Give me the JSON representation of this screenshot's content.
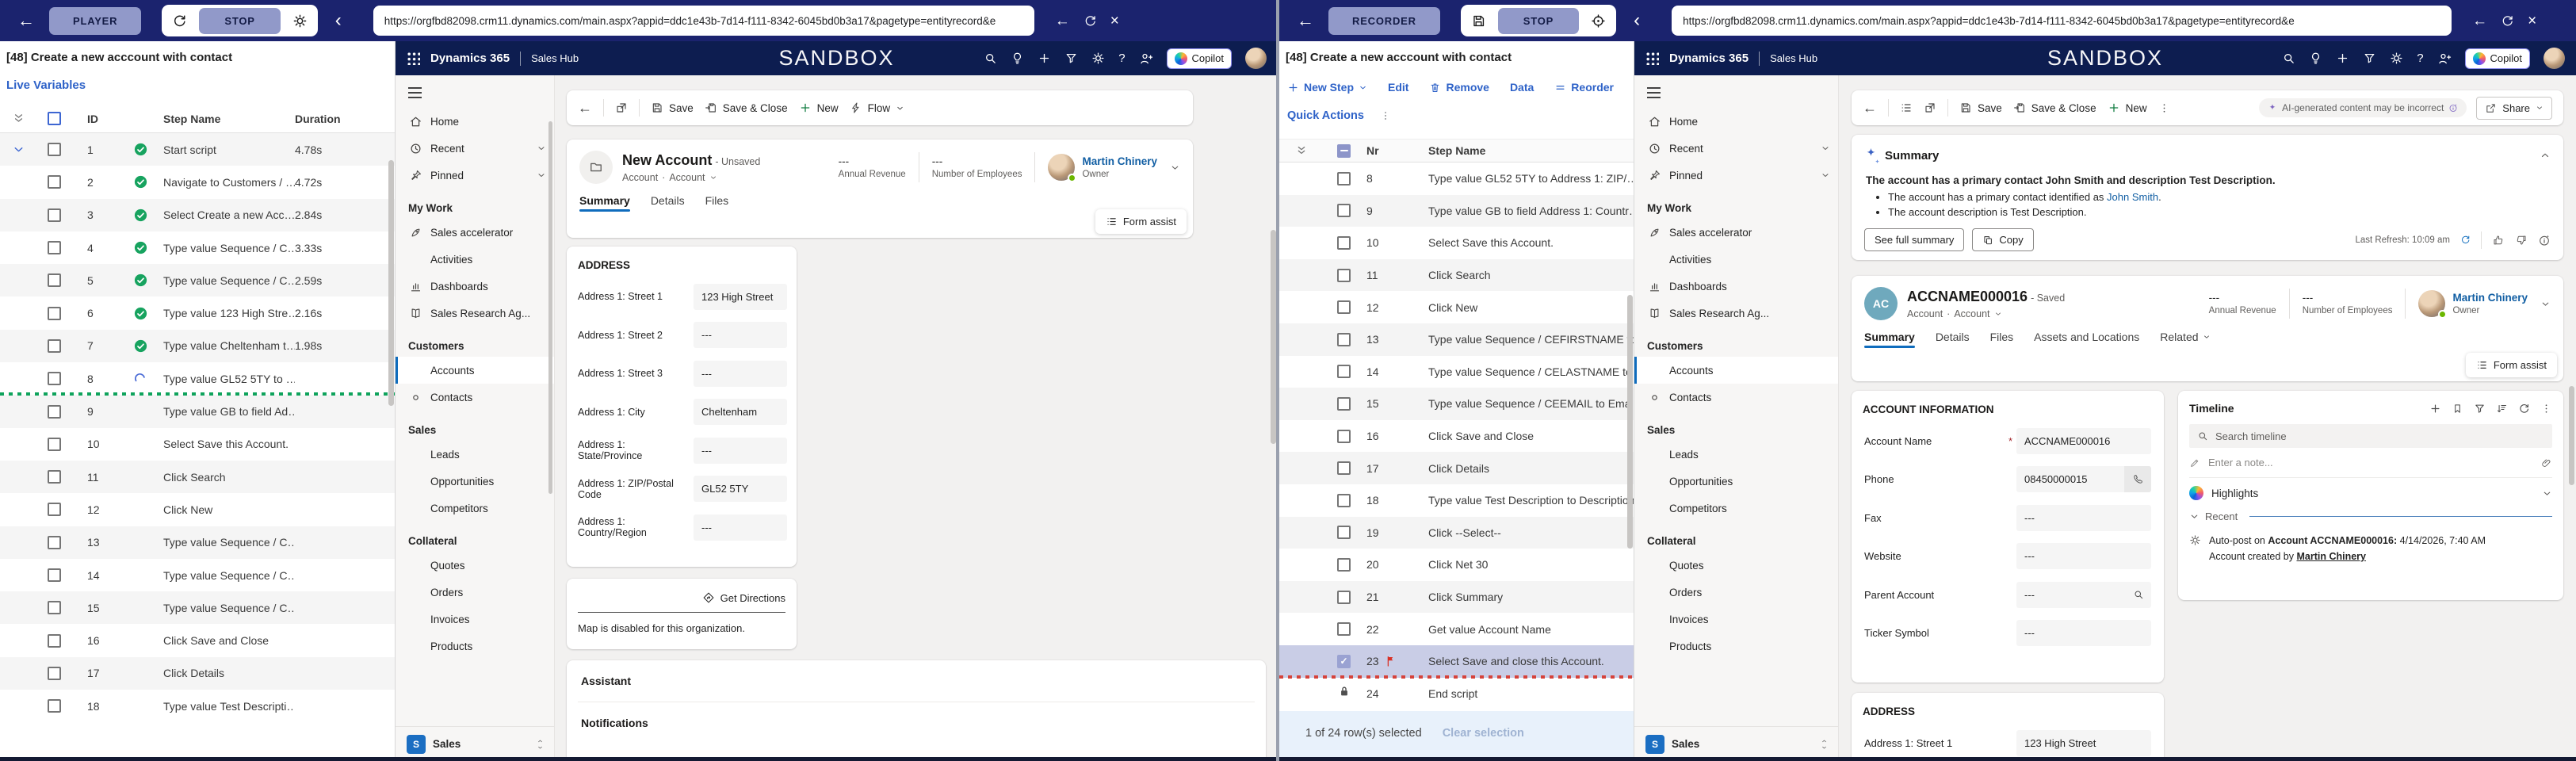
{
  "colors": {
    "toolbar_navy": "#1b236e",
    "button_lavender": "#9199c9",
    "dynamics_navy": "#0d1d50",
    "accent_blue": "#0f6cbd",
    "link_blue": "#2e62c8",
    "success_green": "#17a35f",
    "spinner_blue": "#4a6bd6",
    "selected_row": "#c9cde6",
    "flag_red": "#d93025",
    "footer_bar": "#e8f1fb"
  },
  "left": {
    "toolbar": {
      "mode": "PLAYER",
      "stop": "STOP",
      "url": "https://orgfbd82098.crm11.dynamics.com/main.aspx?appid=ddc1e43b-7d14-f111-8342-6045bd0b3a17&pagetype=entityrecord&e"
    },
    "player": {
      "title": "[48] Create a new acccount with contact",
      "live_variables": "Live Variables",
      "columns": {
        "id": "ID",
        "name": "Step Name",
        "duration": "Duration"
      },
      "rows": [
        {
          "id": "1",
          "name": "Start script",
          "duration": "4.78s",
          "done": true,
          "expander": true,
          "cb": true
        },
        {
          "id": "2",
          "name": "Navigate to Customers / …",
          "duration": "4.72s",
          "done": true,
          "cb": true
        },
        {
          "id": "3",
          "name": "Select Create a new Acc…",
          "duration": "2.84s",
          "done": true,
          "cb": true
        },
        {
          "id": "4",
          "name": "Type value Sequence / C…",
          "duration": "3.33s",
          "done": true,
          "cb": true
        },
        {
          "id": "5",
          "name": "Type value Sequence / C…",
          "duration": "2.59s",
          "done": true,
          "cb": true
        },
        {
          "id": "6",
          "name": "Type value 123 High Stre…",
          "duration": "2.16s",
          "done": true,
          "cb": true
        },
        {
          "id": "7",
          "name": "Type value Cheltenham t…",
          "duration": "1.98s",
          "done": true,
          "cb": true
        },
        {
          "id": "8",
          "name": "Type value GL52 5TY to …",
          "duration": "",
          "running": true,
          "cb": true,
          "divider": "green"
        },
        {
          "id": "9",
          "name": "Type value GB to field Ad…",
          "duration": "",
          "cb": true
        },
        {
          "id": "10",
          "name": "Select Save this Account.",
          "duration": "",
          "cb": true
        },
        {
          "id": "11",
          "name": "Click Search",
          "duration": "",
          "cb": true
        },
        {
          "id": "12",
          "name": "Click New",
          "duration": "",
          "cb": true
        },
        {
          "id": "13",
          "name": "Type value Sequence / C…",
          "duration": "",
          "cb": true
        },
        {
          "id": "14",
          "name": "Type value Sequence / C…",
          "duration": "",
          "cb": true
        },
        {
          "id": "15",
          "name": "Type value Sequence / C…",
          "duration": "",
          "cb": true
        },
        {
          "id": "16",
          "name": "Click Save and Close",
          "duration": "",
          "cb": true
        },
        {
          "id": "17",
          "name": "Click Details",
          "duration": "",
          "cb": true
        },
        {
          "id": "18",
          "name": "Type value Test Descripti…",
          "duration": "",
          "cb": true
        }
      ]
    },
    "d365": {
      "navbar": {
        "brand": "Dynamics 365",
        "app": "Sales Hub",
        "env": "SANDBOX",
        "copilot": "Copilot"
      },
      "sidebar": {
        "top": [
          {
            "icon": "home",
            "label": "Home"
          },
          {
            "icon": "clock",
            "label": "Recent",
            "chevron": true
          },
          {
            "icon": "pin",
            "label": "Pinned",
            "chevron": true
          }
        ],
        "groups": [
          {
            "label": "My Work",
            "items": [
              {
                "icon": "rocket",
                "label": "Sales accelerator"
              },
              {
                "label": "Activities"
              },
              {
                "icon": "chart",
                "label": "Dashboards"
              },
              {
                "icon": "book",
                "label": "Sales Research Ag..."
              }
            ]
          },
          {
            "label": "Customers",
            "items": [
              {
                "label": "Accounts",
                "selected": true
              },
              {
                "icon": "dot",
                "label": "Contacts"
              }
            ]
          },
          {
            "label": "Sales",
            "items": [
              {
                "label": "Leads"
              },
              {
                "label": "Opportunities"
              },
              {
                "label": "Competitors"
              }
            ]
          },
          {
            "label": "Collateral",
            "items": [
              {
                "label": "Quotes"
              },
              {
                "label": "Orders"
              },
              {
                "label": "Invoices"
              },
              {
                "label": "Products"
              }
            ]
          }
        ],
        "footer": {
          "badge": "S",
          "label": "Sales"
        }
      },
      "commands": {
        "save": "Save",
        "save_close": "Save & Close",
        "new_": "New",
        "flow": "Flow"
      },
      "record": {
        "title": "New Account",
        "status": "- Unsaved",
        "entity": "Account",
        "form": "Account",
        "revenue_value": "---",
        "revenue_label": "Annual Revenue",
        "employees_value": "---",
        "employees_label": "Number of Employees",
        "owner": "Martin Chinery",
        "owner_role": "Owner"
      },
      "tabs": [
        {
          "label": "Summary",
          "active": true
        },
        {
          "label": "Details"
        },
        {
          "label": "Files"
        }
      ],
      "form_assist": "Form assist",
      "address": {
        "title": "ADDRESS",
        "fields": [
          {
            "label": "Address 1: Street 1",
            "value": "123 High Street"
          },
          {
            "label": "Address 1: Street 2",
            "value": "---"
          },
          {
            "label": "Address 1: Street 3",
            "value": "---"
          },
          {
            "label": "Address 1: City",
            "value": "Cheltenham"
          },
          {
            "label": "Address 1: State/Province",
            "value": "---"
          },
          {
            "label": "Address 1: ZIP/Postal Code",
            "value": "GL52 5TY"
          },
          {
            "label": "Address 1: Country/Region",
            "value": "---"
          }
        ]
      },
      "map": {
        "action": "Get Directions",
        "note": "Map is disabled for this organization."
      },
      "assistant": "Assistant",
      "notifications": "Notifications"
    }
  },
  "right": {
    "toolbar": {
      "mode": "RECORDER",
      "stop": "STOP",
      "url": "https://orgfbd82098.crm11.dynamics.com/main.aspx?appid=ddc1e43b-7d14-f111-8342-6045bd0b3a17&pagetype=entityrecord&e"
    },
    "recorder": {
      "title": "[48] Create a new acccount with contact",
      "actions": {
        "new_step": "New Step",
        "edit": "Edit",
        "remove": "Remove",
        "data": "Data",
        "reorder": "Reorder"
      },
      "quick_actions": "Quick Actions",
      "columns": {
        "nr": "Nr",
        "name": "Step Name"
      },
      "rows": [
        {
          "nr": "8",
          "name": "Type value GL52 5TY to Address 1: ZIP/…",
          "cb": true
        },
        {
          "nr": "9",
          "name": "Type value GB to field Address 1: Countr…",
          "cb": true
        },
        {
          "nr": "10",
          "name": "Select Save this Account.",
          "cb": true
        },
        {
          "nr": "11",
          "name": "Click Search",
          "cb": true
        },
        {
          "nr": "12",
          "name": "Click New",
          "cb": true
        },
        {
          "nr": "13",
          "name": "Type value Sequence / CEFIRSTNAME to…",
          "cb": true
        },
        {
          "nr": "14",
          "name": "Type value Sequence / CELASTNAME to …",
          "cb": true
        },
        {
          "nr": "15",
          "name": "Type value Sequence / CEEMAIL to Email",
          "cb": true
        },
        {
          "nr": "16",
          "name": "Click Save and Close",
          "cb": true
        },
        {
          "nr": "17",
          "name": "Click Details",
          "cb": true
        },
        {
          "nr": "18",
          "name": "Type value Test Description to Description",
          "cb": true
        },
        {
          "nr": "19",
          "name": "Click --Select--",
          "cb": true
        },
        {
          "nr": "20",
          "name": "Click Net 30",
          "cb": true
        },
        {
          "nr": "21",
          "name": "Click Summary",
          "cb": true
        },
        {
          "nr": "22",
          "name": "Get value Account Name",
          "cb": true
        },
        {
          "nr": "23",
          "name": "Select Save and close this Account.",
          "cb": true,
          "cbstate": "checked",
          "state": "selected",
          "flag": true,
          "divider": "red"
        },
        {
          "nr": "24",
          "name": "End script",
          "lock": true
        }
      ],
      "footer": {
        "selected": "1 of 24 row(s) selected",
        "clear": "Clear selection"
      }
    },
    "d365": {
      "navbar": {
        "brand": "Dynamics 365",
        "app": "Sales Hub",
        "env": "SANDBOX",
        "copilot": "Copilot"
      },
      "sidebar": {
        "top": [
          {
            "icon": "home",
            "label": "Home"
          },
          {
            "icon": "clock",
            "label": "Recent",
            "chevron": true
          },
          {
            "icon": "pin",
            "label": "Pinned",
            "chevron": true
          }
        ],
        "groups": [
          {
            "label": "My Work",
            "items": [
              {
                "icon": "rocket",
                "label": "Sales accelerator"
              },
              {
                "label": "Activities"
              },
              {
                "icon": "chart",
                "label": "Dashboards"
              },
              {
                "icon": "book",
                "label": "Sales Research Ag..."
              }
            ]
          },
          {
            "label": "Customers",
            "items": [
              {
                "label": "Accounts",
                "selected": true
              },
              {
                "icon": "dot",
                "label": "Contacts"
              }
            ]
          },
          {
            "label": "Sales",
            "items": [
              {
                "label": "Leads"
              },
              {
                "label": "Opportunities"
              },
              {
                "label": "Competitors"
              }
            ]
          },
          {
            "label": "Collateral",
            "items": [
              {
                "label": "Quotes"
              },
              {
                "label": "Orders"
              },
              {
                "label": "Invoices"
              },
              {
                "label": "Products"
              }
            ]
          }
        ],
        "footer": {
          "badge": "S",
          "label": "Sales"
        }
      },
      "commands": {
        "save": "Save",
        "save_close": "Save & Close",
        "new_": "New"
      },
      "ai_note": "AI-generated content may be incorrect",
      "share": "Share",
      "summary": {
        "title": "Summary",
        "headline": "The account has a primary contact John Smith and description Test Description.",
        "bullet1_pre": "The account has a primary contact identified as ",
        "bullet1_link": "John Smith",
        "bullet1_post": ".",
        "bullet2": "The account description is Test Description.",
        "see_full": "See full summary",
        "copy": "Copy",
        "refresh": "Last Refresh: 10:09 am"
      },
      "record": {
        "avatar": "AC",
        "title": "ACCNAME000016",
        "status": "- Saved",
        "entity": "Account",
        "form": "Account",
        "revenue_value": "---",
        "revenue_label": "Annual Revenue",
        "employees_value": "---",
        "employees_label": "Number of Employees",
        "owner": "Martin Chinery",
        "owner_role": "Owner"
      },
      "tabs": [
        {
          "label": "Summary",
          "active": true
        },
        {
          "label": "Details"
        },
        {
          "label": "Files"
        },
        {
          "label": "Assets and Locations"
        },
        {
          "label": "Related",
          "chevron": true
        }
      ],
      "form_assist": "Form assist",
      "account_info": {
        "title": "ACCOUNT INFORMATION",
        "fields": [
          {
            "label": "Account Name",
            "value": "ACCNAME000016",
            "required": true
          },
          {
            "label": "Phone",
            "value": "08450000015",
            "phone": true
          },
          {
            "label": "Fax",
            "value": "---"
          },
          {
            "label": "Website",
            "value": "---"
          },
          {
            "label": "Parent Account",
            "value": "---",
            "lookup": true
          },
          {
            "label": "Ticker Symbol",
            "value": "---"
          }
        ]
      },
      "address": {
        "title": "ADDRESS",
        "fields": [
          {
            "label": "Address 1: Street 1",
            "value": "123 High Street"
          }
        ]
      },
      "timeline": {
        "title": "Timeline",
        "search_placeholder": "Search timeline",
        "note_placeholder": "Enter a note...",
        "highlights": "Highlights",
        "recent": "Recent",
        "post_pre": "Auto-post on ",
        "post_bold": "Account ACCNAME000016:",
        "post_date": "4/14/2026, 7:40 AM",
        "post_line2_pre": "Account created by ",
        "post_line2_link": "Martin Chinery"
      }
    }
  }
}
